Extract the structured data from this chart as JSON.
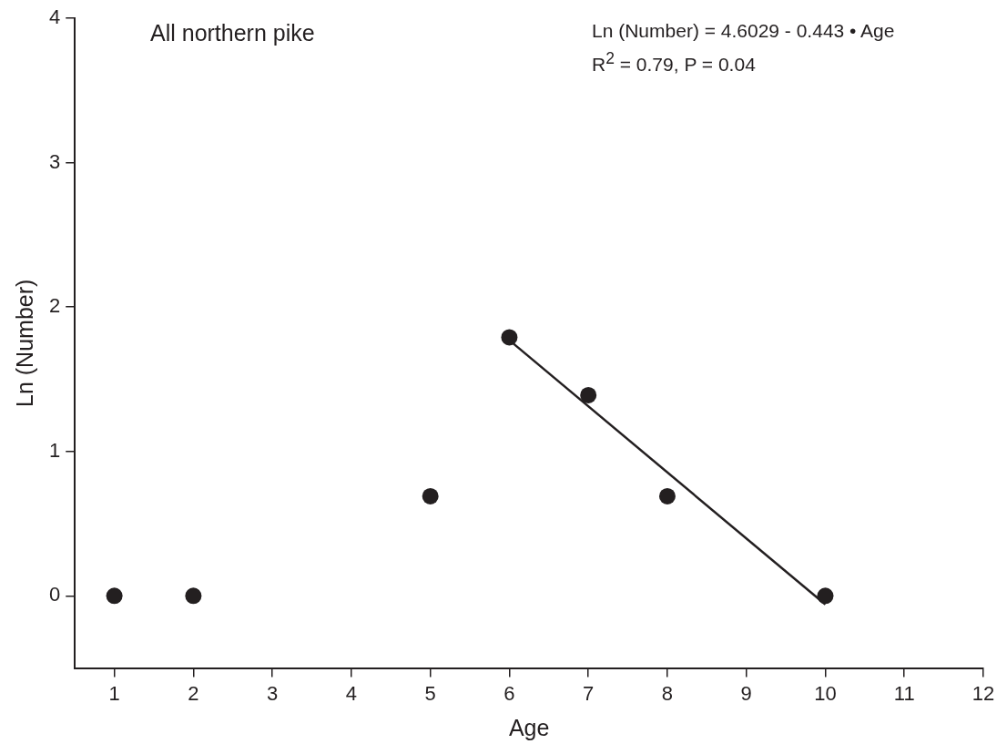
{
  "chart_data": {
    "type": "scatter",
    "xlabel": "Age",
    "ylabel": "Ln (Number)",
    "annotations": [
      "All northern pike",
      "Ln (Number) = 4.6029 - 0.443 • Age",
      "R$^{2}$ = 0.79, P = 0.04"
    ],
    "series": [
      {
        "color": "#231f20",
        "x": [
          1,
          2,
          5,
          6,
          7,
          8,
          10
        ],
        "values": [
          0,
          0,
          0.69,
          1.79,
          1.39,
          0.69,
          0
        ],
        "marker": "circle"
      },
      {
        "type": "line",
        "color": "#231f20",
        "x": [
          6,
          10
        ],
        "values": [
          1.77,
          -0.06
        ],
        "marker": "none",
        "line_style": "solid"
      }
    ],
    "xlim": [
      0.5,
      12
    ],
    "xticks": [
      1,
      2,
      3,
      4,
      5,
      6,
      7,
      8,
      9,
      10,
      11,
      12
    ],
    "ylim": [
      -0.5,
      4
    ],
    "yticks": [
      0,
      1,
      2,
      3,
      4
    ],
    "grid": false,
    "legend": false
  }
}
